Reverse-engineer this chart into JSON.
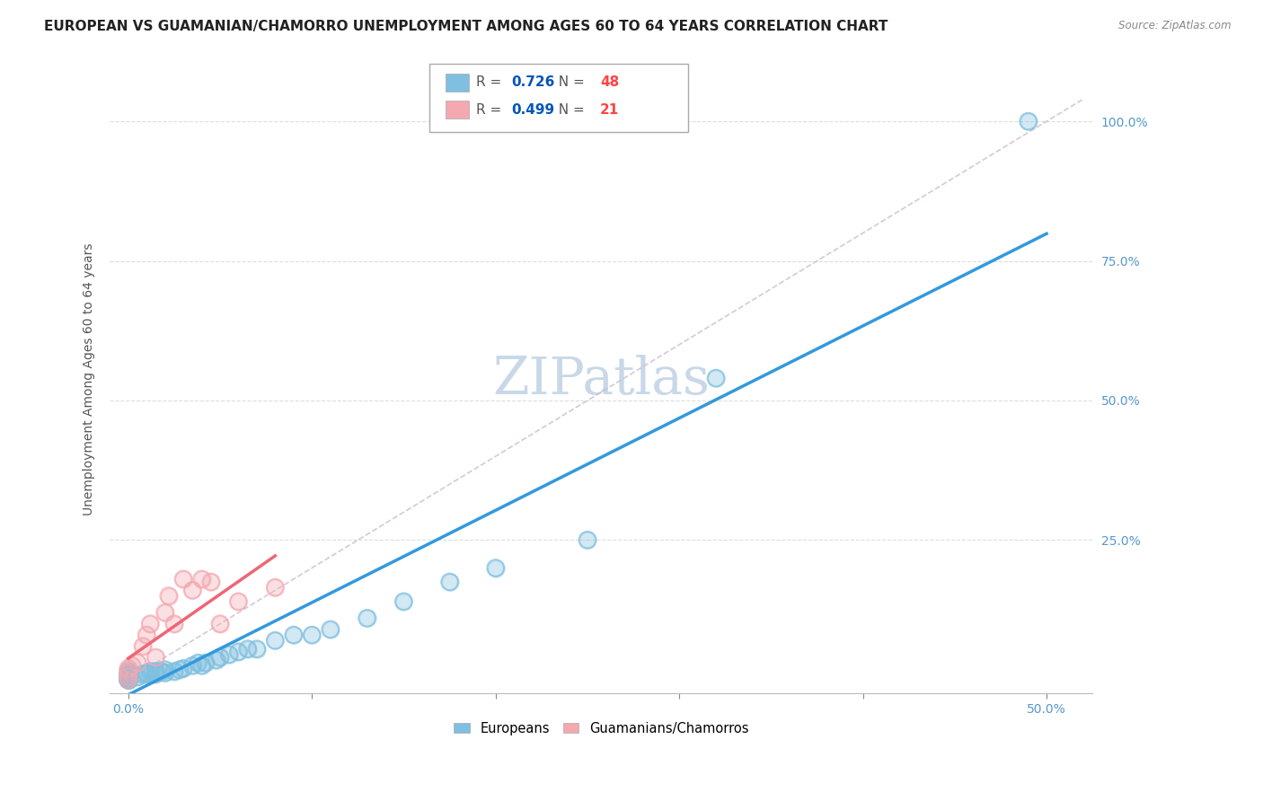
{
  "title": "EUROPEAN VS GUAMANIAN/CHAMORRO UNEMPLOYMENT AMONG AGES 60 TO 64 YEARS CORRELATION CHART",
  "source": "Source: ZipAtlas.com",
  "ylabel": "Unemployment Among Ages 60 to 64 years",
  "xticklabels_edge": [
    "0.0%",
    "50.0%"
  ],
  "xticks_edge": [
    0.0,
    0.5
  ],
  "xticks_minor": [
    0.1,
    0.2,
    0.3,
    0.4
  ],
  "yticklabels": [
    "100.0%",
    "75.0%",
    "50.0%",
    "25.0%"
  ],
  "yticks": [
    1.0,
    0.75,
    0.5,
    0.25
  ],
  "xlim": [
    -0.01,
    0.525
  ],
  "ylim": [
    -0.025,
    1.1
  ],
  "background_color": "#ffffff",
  "grid_color": "#dddddd",
  "watermark": "ZIPatlas",
  "watermark_color": "#c8d8e8",
  "legend_european_color": "#7fbfdf",
  "legend_chamorro_color": "#f4a8b0",
  "european_R": 0.726,
  "european_N": 48,
  "chamorro_R": 0.499,
  "chamorro_N": 21,
  "european_line_color": "#3399dd",
  "chamorro_line_color": "#ee6677",
  "diagonal_color": "#ccbbcc",
  "european_scatter_color": "#7fbfdf",
  "chamorro_scatter_color": "#f4a8b0",
  "european_x": [
    0.0,
    0.0,
    0.0,
    0.0,
    0.0,
    0.0,
    0.0,
    0.0,
    0.0,
    0.0,
    0.0,
    0.0,
    0.0,
    0.0,
    0.005,
    0.008,
    0.01,
    0.01,
    0.012,
    0.015,
    0.015,
    0.018,
    0.02,
    0.02,
    0.025,
    0.028,
    0.03,
    0.035,
    0.038,
    0.04,
    0.042,
    0.048,
    0.05,
    0.055,
    0.06,
    0.065,
    0.07,
    0.08,
    0.09,
    0.1,
    0.11,
    0.13,
    0.15,
    0.175,
    0.2,
    0.25,
    0.32,
    0.49
  ],
  "european_y": [
    0.0,
    0.0,
    0.0,
    0.0,
    0.0,
    0.0,
    0.0,
    0.0,
    0.0,
    0.005,
    0.008,
    0.01,
    0.01,
    0.015,
    0.005,
    0.01,
    0.01,
    0.012,
    0.015,
    0.01,
    0.015,
    0.015,
    0.012,
    0.018,
    0.015,
    0.018,
    0.02,
    0.025,
    0.03,
    0.025,
    0.03,
    0.035,
    0.04,
    0.045,
    0.05,
    0.055,
    0.055,
    0.07,
    0.08,
    0.08,
    0.09,
    0.11,
    0.14,
    0.175,
    0.2,
    0.25,
    0.54,
    1.0
  ],
  "chamorro_x": [
    0.0,
    0.0,
    0.0,
    0.0,
    0.0,
    0.002,
    0.005,
    0.008,
    0.01,
    0.012,
    0.015,
    0.02,
    0.022,
    0.025,
    0.03,
    0.035,
    0.04,
    0.045,
    0.05,
    0.06,
    0.08
  ],
  "chamorro_y": [
    0.0,
    0.005,
    0.01,
    0.015,
    0.02,
    0.025,
    0.03,
    0.06,
    0.08,
    0.1,
    0.04,
    0.12,
    0.15,
    0.1,
    0.18,
    0.16,
    0.18,
    0.175,
    0.1,
    0.14,
    0.165
  ],
  "title_fontsize": 11,
  "axis_label_fontsize": 10,
  "tick_fontsize": 10,
  "legend_fontsize": 10,
  "r_color": "#0055bb",
  "n_color": "#ff4444"
}
